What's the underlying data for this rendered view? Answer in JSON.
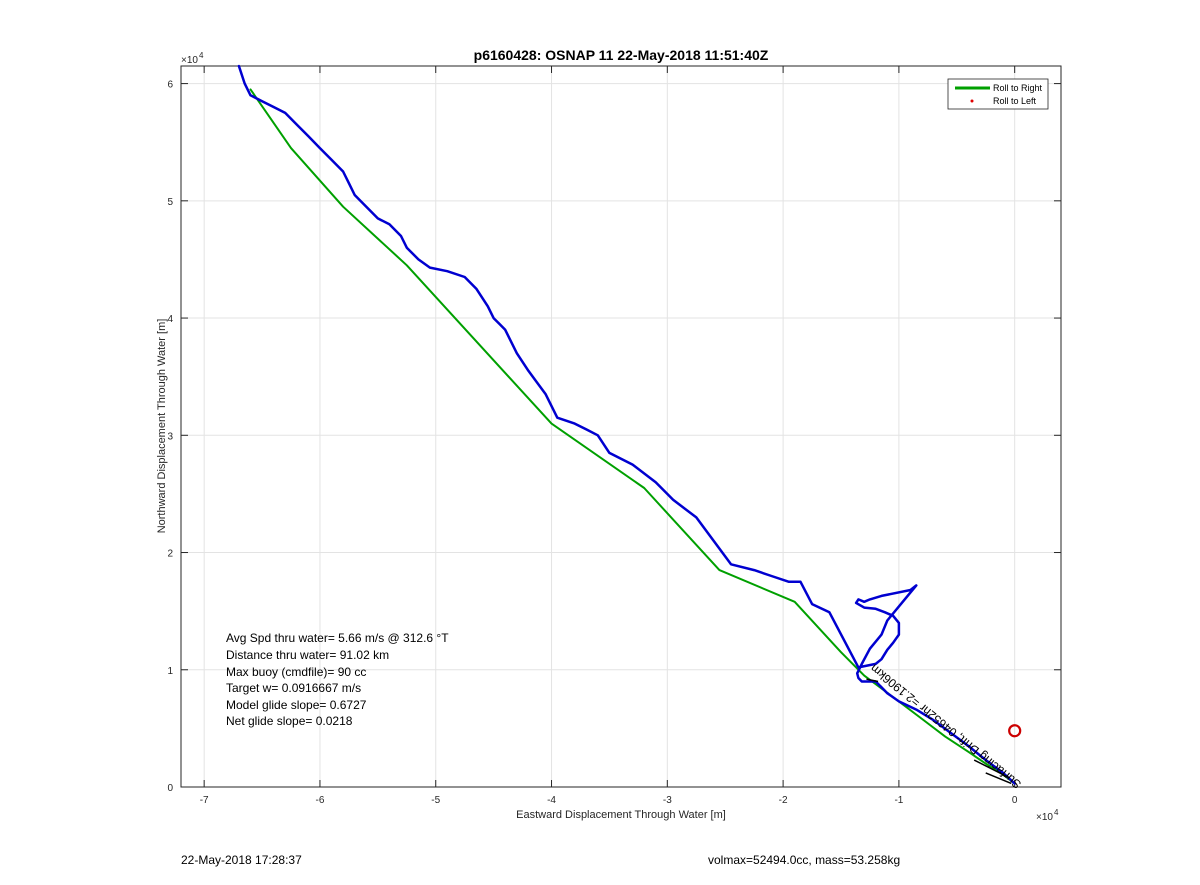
{
  "chart_data": {
    "type": "line",
    "title": "p6160428: OSNAP 11 22-May-2018 11:51:40Z",
    "xlabel": "Eastward Displacement Through Water [m]",
    "ylabel": "Northward Displacement Through Water [m]",
    "x_exponent_label": "×10",
    "x_exponent_power": "4",
    "y_exponent_label": "×10",
    "y_exponent_power": "4",
    "xlim": [
      -72000,
      4000
    ],
    "ylim": [
      0,
      61500
    ],
    "xticks": [
      -70000,
      -60000,
      -50000,
      -40000,
      -30000,
      -20000,
      -10000,
      0
    ],
    "xtick_labels": [
      "-7",
      "-6",
      "-5",
      "-4",
      "-3",
      "-2",
      "-1",
      "0"
    ],
    "yticks": [
      0,
      10000,
      20000,
      30000,
      40000,
      50000,
      60000
    ],
    "ytick_labels": [
      "0",
      "1",
      "2",
      "3",
      "4",
      "5",
      "6"
    ],
    "grid": true,
    "legend_position": "top-right",
    "series": [
      {
        "name": "Roll to Right",
        "color": "#00a000",
        "x": [
          0,
          -1200,
          -2500,
          -4000,
          -6000,
          -8000,
          -10000,
          -11500,
          -13000,
          -15000,
          -19000,
          -25500,
          -32000,
          -40000,
          -52500,
          -58000,
          -62500,
          -66000
        ],
        "y": [
          300,
          1200,
          2000,
          3000,
          4300,
          5800,
          7300,
          8400,
          9500,
          11500,
          15800,
          18500,
          25500,
          31000,
          44500,
          49500,
          54500,
          59500
        ]
      },
      {
        "name": "Roll to Left",
        "color": "#e00000",
        "x": [],
        "y": []
      },
      {
        "name": "",
        "color": "#0000d0",
        "x": [
          0,
          -1000,
          -2500,
          -4000,
          -5500,
          -7000,
          -8500,
          -10000,
          -11000,
          -11500,
          -12000,
          -13200,
          -13500,
          -13600,
          -13200,
          -12500,
          -11500,
          -11000,
          -9500,
          -8500,
          -9000,
          -11500,
          -12500,
          -13000,
          -13500,
          -13700,
          -13000,
          -12000,
          -11200,
          -10500,
          -10000,
          -10000,
          -10500,
          -11000,
          -11500,
          -12000,
          -13500,
          -16000,
          -17500,
          -18500,
          -19500,
          -21000,
          -22500,
          -24500,
          -26000,
          -27500,
          -29500,
          -31000,
          -33000,
          -34000,
          -35000,
          -36000,
          -37000,
          -38000,
          -39500,
          -40500,
          -42000,
          -43000,
          -44000,
          -44500,
          -45000,
          -45500,
          -46500,
          -47500,
          -49000,
          -50500,
          -51500,
          -52500,
          -53000,
          -54000,
          -55000,
          -56000,
          -57000,
          -57500,
          -58000,
          -59000,
          -60000,
          -61000,
          -62000,
          -63000,
          -64000,
          -65000,
          -66000,
          -66500,
          -67000
        ],
        "y": [
          300,
          1200,
          2300,
          3500,
          4600,
          5700,
          6600,
          7300,
          8000,
          8500,
          9000,
          9000,
          9300,
          9700,
          10500,
          11800,
          13000,
          14200,
          16000,
          17200,
          16800,
          16300,
          16000,
          15800,
          16000,
          15700,
          15300,
          15200,
          14900,
          14600,
          14000,
          13000,
          12300,
          11700,
          10900,
          10500,
          10200,
          14900,
          15600,
          17500,
          17500,
          18000,
          18500,
          19000,
          21000,
          23000,
          24500,
          26000,
          27500,
          28000,
          28500,
          30000,
          30500,
          31000,
          31500,
          33500,
          35500,
          37000,
          39000,
          39500,
          40000,
          41000,
          42500,
          43500,
          44000,
          44300,
          45000,
          46000,
          47000,
          48000,
          48500,
          49500,
          50500,
          51500,
          52500,
          53500,
          54500,
          55500,
          56500,
          57500,
          58000,
          58500,
          59000,
          60000,
          61500
        ]
      }
    ],
    "annotations": [
      "Avg Spd thru water=  5.66 m/s @ 312.6 °T",
      "Distance thru water= 91.02 km",
      "Max buoy (cmdfile)= 90 cc",
      "Target w= 0.0916667 m/s",
      "Model glide slope= 0.6727",
      "Net glide slope= 0.0218"
    ],
    "rotated_annotation": "Surfacing Drift; 04652hr =2.1906km",
    "marker_circle": {
      "x": 0,
      "y": 4800,
      "color": "#cc0000"
    }
  },
  "footer": {
    "left": "22-May-2018 17:28:37",
    "right": "volmax=52494.0cc, mass=53.258kg"
  }
}
